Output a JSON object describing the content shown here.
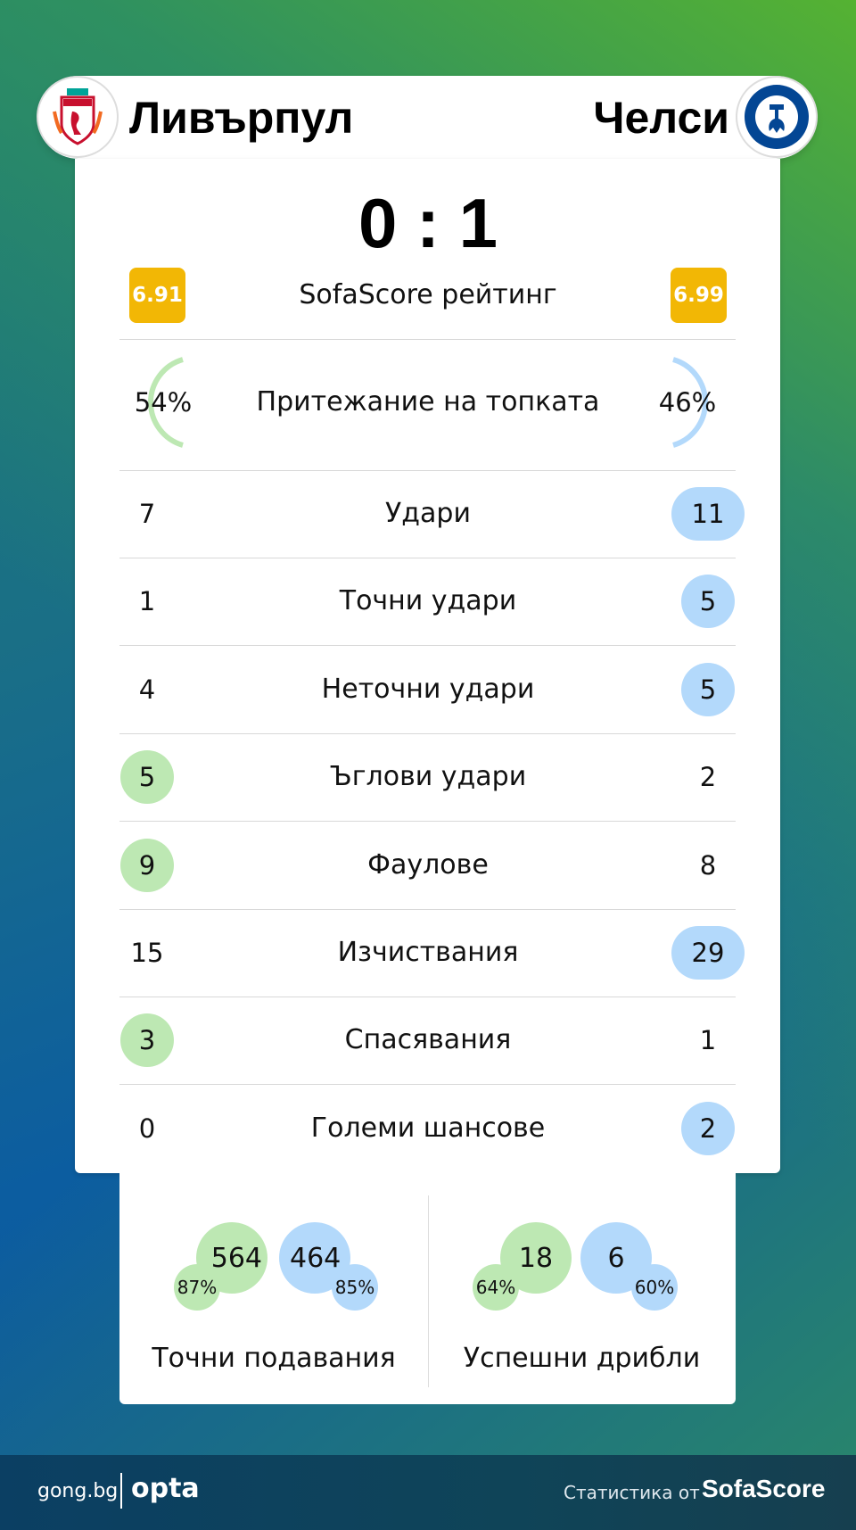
{
  "home": {
    "name": "Ливърпул",
    "logo": "liverpool-crest",
    "rating": "6.91",
    "possession": "54%"
  },
  "away": {
    "name": "Челси",
    "logo": "chelsea-crest",
    "rating": "6.99",
    "possession": "46%"
  },
  "score": "0 : 1",
  "rating_label": "SofaScore рейтинг",
  "possession_label": "Притежание на топката",
  "possession_values": {
    "home": 54,
    "away": 46
  },
  "stats": [
    {
      "label": "Удари",
      "home": "7",
      "away": "11",
      "leader": "away"
    },
    {
      "label": "Точни удари",
      "home": "1",
      "away": "5",
      "leader": "away"
    },
    {
      "label": "Неточни удари",
      "home": "4",
      "away": "5",
      "leader": "away"
    },
    {
      "label": "Ъглови удари",
      "home": "5",
      "away": "2",
      "leader": "home"
    },
    {
      "label": "Фаулове",
      "home": "9",
      "away": "8",
      "leader": "home"
    },
    {
      "label": "Изчиствания",
      "home": "15",
      "away": "29",
      "leader": "away"
    },
    {
      "label": "Спасявания",
      "home": "3",
      "away": "1",
      "leader": "home"
    },
    {
      "label": "Големи шансове",
      "home": "0",
      "away": "2",
      "leader": "away"
    }
  ],
  "passes": {
    "label": "Точни подавания",
    "home": "564",
    "home_pct": "87%",
    "away": "464",
    "away_pct": "85%"
  },
  "dribbles": {
    "label": "Успешни дрибли",
    "home": "18",
    "home_pct": "64%",
    "away": "6",
    "away_pct": "60%"
  },
  "footer": {
    "brand1": "gong.bg",
    "brand2": "opta",
    "credit": "Статистика от",
    "credit_brand": "SofaScore"
  },
  "colors": {
    "home": "#bde8b3",
    "away": "#b3d9fb",
    "rating": "#f2b705"
  }
}
